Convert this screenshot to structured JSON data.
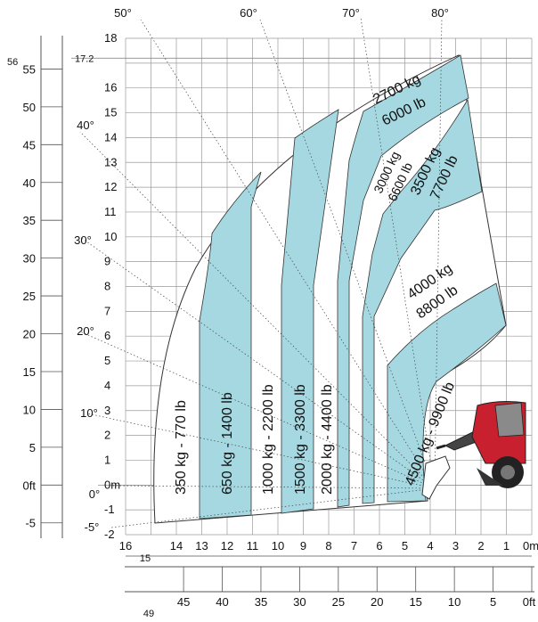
{
  "chart_data": {
    "type": "load-chart",
    "y_axis_m": [
      "18",
      "17.2",
      "16",
      "15",
      "14",
      "13",
      "12",
      "11",
      "10",
      "9",
      "8",
      "7",
      "6",
      "5",
      "4",
      "3",
      "2",
      "1",
      "0m",
      "-1",
      "-2"
    ],
    "x_axis_m": [
      "16",
      "15",
      "14",
      "13",
      "12",
      "11",
      "10",
      "9",
      "8",
      "7",
      "6",
      "5",
      "4",
      "3",
      "2",
      "1",
      "0m"
    ],
    "y_axis_ft": [
      "56",
      "55",
      "50",
      "45",
      "40",
      "35",
      "30",
      "25",
      "20",
      "15",
      "10",
      "5",
      "0ft",
      "-5"
    ],
    "x_axis_ft": [
      "49",
      "45",
      "40",
      "35",
      "30",
      "25",
      "20",
      "15",
      "10",
      "5",
      "0ft"
    ],
    "angles": [
      "80°",
      "70°",
      "60°",
      "50°",
      "40°",
      "30°",
      "20°",
      "10°",
      "0°",
      "-5°"
    ],
    "bands": [
      {
        "label": "350 kg - 770 lb",
        "fill": "#ffffff"
      },
      {
        "label": "650 kg - 1400 lb",
        "fill": "#a6d8e2"
      },
      {
        "label": "1000 kg - 2200 lb",
        "fill": "#ffffff"
      },
      {
        "label": "1500 kg - 3300 lb",
        "fill": "#a6d8e2"
      },
      {
        "label": "2000 kg - 4400 lb",
        "fill": "#ffffff"
      },
      {
        "label": "2700 kg",
        "label2": "6000 lb",
        "fill": "#a6d8e2"
      },
      {
        "label": "3000 kg",
        "label2": "6600 lb",
        "fill": "#ffffff"
      },
      {
        "label": "3500 kg",
        "label2": "7700 lb",
        "fill": "#a6d8e2"
      },
      {
        "label": "4000 kg",
        "label2": "8800 lb",
        "fill": "#ffffff"
      },
      {
        "label": "4500 kg - 9900 lb",
        "fill": "#a6d8e2"
      }
    ],
    "colors": {
      "band": "#a6d8e2",
      "grid": "#9a9a9a",
      "machine": "#c8202e"
    }
  }
}
